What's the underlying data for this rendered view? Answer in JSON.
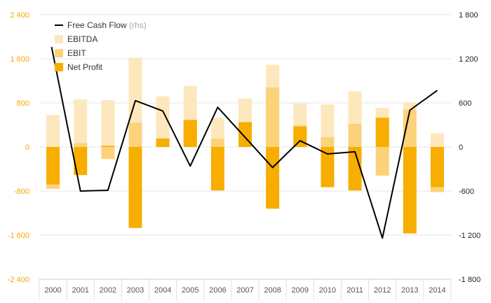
{
  "chart_data": {
    "type": "bar",
    "categories": [
      "2000",
      "2001",
      "2002",
      "2003",
      "2004",
      "2005",
      "2006",
      "2007",
      "2008",
      "2009",
      "2010",
      "2011",
      "2012",
      "2013",
      "2014"
    ],
    "series": [
      {
        "name": "EBITDA",
        "kind": "bar",
        "axis": "left",
        "color": "#fde8bd",
        "values": [
          580,
          860,
          850,
          1620,
          920,
          1110,
          530,
          880,
          1490,
          790,
          770,
          1010,
          710,
          810,
          250
        ]
      },
      {
        "name": "EBIT",
        "kind": "bar",
        "axis": "left",
        "color": "#fcd27a",
        "values": [
          -760,
          70,
          -220,
          440,
          160,
          490,
          150,
          240,
          1080,
          390,
          180,
          420,
          -520,
          680,
          -820
        ]
      },
      {
        "name": "Net Profit",
        "kind": "bar",
        "axis": "left",
        "color": "#f7ae00",
        "values": [
          -680,
          -510,
          20,
          -1470,
          150,
          490,
          -790,
          450,
          -1120,
          370,
          -730,
          -790,
          530,
          -1570,
          -730
        ]
      },
      {
        "name": "Free Cash Flow",
        "kind": "line",
        "axis": "right",
        "color": "#000000",
        "values": [
          1360,
          -600,
          -590,
          630,
          490,
          -260,
          540,
          130,
          -280,
          85,
          -95,
          -65,
          -1240,
          500,
          770
        ]
      }
    ],
    "legend": [
      {
        "label": "Free Cash Flow",
        "suffix": "(rhs)",
        "marker": "line",
        "color": "#000000"
      },
      {
        "label": "EBITDA",
        "suffix": "",
        "marker": "square",
        "color": "#fde8bd"
      },
      {
        "label": "EBIT",
        "suffix": "",
        "marker": "square",
        "color": "#fcd27a"
      },
      {
        "label": "Net Profit",
        "suffix": "",
        "marker": "square",
        "color": "#f7ae00"
      }
    ],
    "y_left": {
      "range": [
        -2400,
        2400
      ],
      "ticks": [
        2400,
        1600,
        800,
        0,
        -800,
        -1600,
        -2400
      ],
      "tick_labels": [
        "2 400",
        "1 600",
        "800",
        "0",
        "-800",
        "-1 600",
        "-2 400"
      ],
      "color": "#f5a800"
    },
    "y_right": {
      "range": [
        -1800,
        1800
      ],
      "ticks": [
        1800,
        1200,
        600,
        0,
        -600,
        -1200,
        -1800
      ],
      "tick_labels": [
        "1 800",
        "1 200",
        "600",
        "0",
        "-600",
        "-1 200",
        "-1 800"
      ],
      "color": "#222222"
    },
    "grid": true,
    "legend_position": "top-left"
  }
}
